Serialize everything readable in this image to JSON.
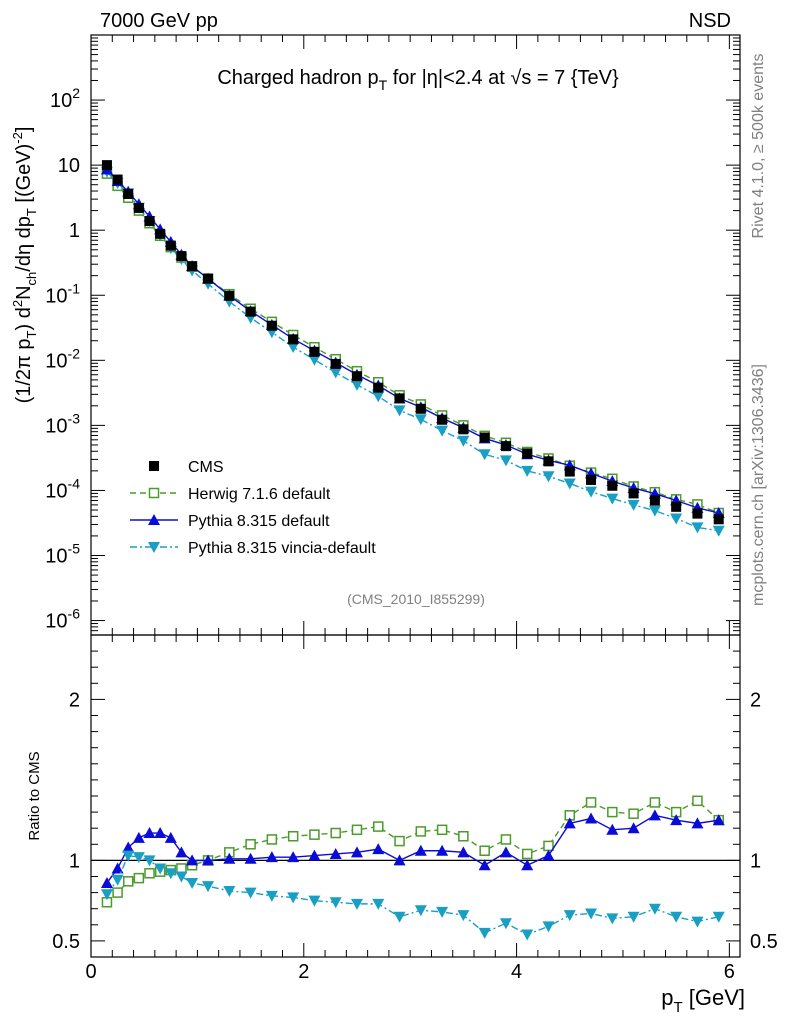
{
  "header": {
    "energy": "7000 GeV pp",
    "process": "NSD",
    "side_rivet": "Rivet 4.1.0, ≥ 500k events",
    "side_mcplots": "mcplots.cern.ch [arXiv:1306.3436]",
    "analysis": "(CMS_2010_I855299)"
  },
  "chart_data": [
    {
      "type": "scatter",
      "panel": "main",
      "title": "Charged hadron p_T for |η|<2.4 at √s = 7 {TeV}",
      "title_parts": {
        "a": "Charged hadron p",
        "sub": "T",
        "b": " for |η|<2.4 at √s = 7 {TeV}"
      },
      "ylabel": "(1/2π p_T) d²N_ch/dη dp_T [(GeV)^-2]",
      "ylabel_text": "(1/2π p",
      "ylabel_text2": ") d",
      "ylabel_text3": "N",
      "ylabel_text4": "/dη dp",
      "ylabel_text5": " [(GeV)",
      "ylabel_sub_t": "T",
      "ylabel_sub_ch": "ch",
      "ylabel_sup_2": "2",
      "ylabel_sup_m2": "-2",
      "ylabel_close": "]",
      "yscale": "log",
      "ylim": [
        6e-07,
        1000
      ],
      "xlim": [
        0,
        6.1
      ],
      "y_ticks": [
        {
          "value": 1e-06,
          "base": "10",
          "exp": "-6"
        },
        {
          "value": 1e-05,
          "base": "10",
          "exp": "-5"
        },
        {
          "value": 0.0001,
          "base": "10",
          "exp": "-4"
        },
        {
          "value": 0.001,
          "base": "10",
          "exp": "-3"
        },
        {
          "value": 0.01,
          "base": "10",
          "exp": "-2"
        },
        {
          "value": 0.1,
          "base": "10",
          "exp": "-1"
        },
        {
          "value": 1,
          "base": "1",
          "exp": ""
        },
        {
          "value": 10,
          "base": "10",
          "exp": ""
        },
        {
          "value": 100,
          "base": "10",
          "exp": "2"
        }
      ],
      "x": [
        0.15,
        0.25,
        0.35,
        0.45,
        0.55,
        0.65,
        0.75,
        0.85,
        0.95,
        1.1,
        1.3,
        1.5,
        1.7,
        1.9,
        2.1,
        2.3,
        2.5,
        2.7,
        2.9,
        3.1,
        3.3,
        3.5,
        3.7,
        3.9,
        4.1,
        4.3,
        4.5,
        4.7,
        4.9,
        5.1,
        5.3,
        5.5,
        5.7,
        5.9
      ],
      "series": [
        {
          "name": "CMS",
          "marker": "square",
          "color": "#000000",
          "values": [
            10.0,
            6.0,
            3.6,
            2.2,
            1.38,
            0.88,
            0.58,
            0.4,
            0.28,
            0.18,
            0.098,
            0.056,
            0.034,
            0.021,
            0.0135,
            0.0088,
            0.0057,
            0.0038,
            0.0026,
            0.0018,
            0.00122,
            0.00087,
            0.00065,
            0.00048,
            0.00037,
            0.00028,
            0.000195,
            0.000145,
            0.000118,
            9e-05,
            7e-05,
            5.6e-05,
            4.4e-05,
            3.6e-05
          ]
        },
        {
          "name": "Herwig 7.1.6 default",
          "marker": "open-square",
          "color": "#4b9a2a",
          "dash": "6,4",
          "values": [
            7.4,
            4.8,
            3.15,
            2.0,
            1.28,
            0.82,
            0.55,
            0.38,
            0.275,
            0.18,
            0.104,
            0.062,
            0.039,
            0.0245,
            0.0159,
            0.0104,
            0.0068,
            0.0046,
            0.0029,
            0.0021,
            0.00142,
            0.001,
            0.00069,
            0.00054,
            0.00039,
            0.00031,
            0.00024,
            0.000188,
            0.000151,
            0.000115,
            9.4e-05,
            7.3e-05,
            6.1e-05,
            4.5e-05
          ]
        },
        {
          "name": "Pythia 8.315 default",
          "marker": "triangle-up",
          "color": "#0b0bd9",
          "dash": "",
          "values": [
            8.6,
            5.7,
            3.9,
            2.5,
            1.62,
            1.03,
            0.66,
            0.42,
            0.28,
            0.18,
            0.099,
            0.057,
            0.035,
            0.0214,
            0.014,
            0.0092,
            0.006,
            0.0041,
            0.0026,
            0.0019,
            0.00129,
            0.00092,
            0.00063,
            0.0005,
            0.00036,
            0.00029,
            0.000243,
            0.000183,
            0.000139,
            0.000109,
            8.9e-05,
            7e-05,
            5.4e-05,
            4.5e-05
          ]
        },
        {
          "name": "Pythia 8.315 vincia-default",
          "marker": "triangle-down",
          "color": "#1a9fc4",
          "dash": "7,3,2,3",
          "values": [
            7.9,
            5.3,
            3.7,
            2.2,
            1.38,
            0.83,
            0.53,
            0.36,
            0.24,
            0.15,
            0.08,
            0.045,
            0.027,
            0.016,
            0.0102,
            0.0065,
            0.0042,
            0.0028,
            0.0017,
            0.00124,
            0.00083,
            0.00058,
            0.00036,
            0.00029,
            0.0002,
            0.000165,
            0.000128,
            9.6e-05,
            7.5e-05,
            6e-05,
            4.9e-05,
            3.7e-05,
            2.7e-05,
            2.4e-05
          ]
        }
      ],
      "legend": {
        "placement": "bottom-left"
      }
    },
    {
      "type": "scatter",
      "panel": "ratio",
      "ylabel": "Ratio to CMS",
      "xlabel": "p_T [GeV]",
      "xlabel_a": "p",
      "xlabel_sub": "T",
      "xlabel_b": " [GeV]",
      "ylim": [
        0.4,
        2.4
      ],
      "xlim": [
        0,
        6.1
      ],
      "y_ticks": [
        {
          "value": 0.5,
          "label": "0.5"
        },
        {
          "value": 1,
          "label": "1"
        },
        {
          "value": 2,
          "label": "2"
        }
      ],
      "x_ticks": [
        {
          "value": 0,
          "label": "0"
        },
        {
          "value": 2,
          "label": "2"
        },
        {
          "value": 4,
          "label": "4"
        },
        {
          "value": 6,
          "label": "6"
        }
      ],
      "x": [
        0.15,
        0.25,
        0.35,
        0.45,
        0.55,
        0.65,
        0.75,
        0.85,
        0.95,
        1.1,
        1.3,
        1.5,
        1.7,
        1.9,
        2.1,
        2.3,
        2.5,
        2.7,
        2.9,
        3.1,
        3.3,
        3.5,
        3.7,
        3.9,
        4.1,
        4.3,
        4.5,
        4.7,
        4.9,
        5.1,
        5.3,
        5.5,
        5.7,
        5.9
      ],
      "series": [
        {
          "name": "Herwig 7.1.6 default",
          "values": [
            0.74,
            0.8,
            0.87,
            0.89,
            0.92,
            0.93,
            0.94,
            0.95,
            0.97,
            1.0,
            1.05,
            1.1,
            1.13,
            1.15,
            1.16,
            1.17,
            1.19,
            1.21,
            1.12,
            1.18,
            1.19,
            1.15,
            1.06,
            1.13,
            1.04,
            1.09,
            1.28,
            1.36,
            1.3,
            1.29,
            1.36,
            1.3,
            1.37,
            1.25
          ]
        },
        {
          "name": "Pythia 8.315 default",
          "values": [
            0.86,
            0.95,
            1.08,
            1.14,
            1.17,
            1.17,
            1.14,
            1.05,
            1.0,
            1.0,
            1.01,
            1.01,
            1.02,
            1.02,
            1.03,
            1.04,
            1.05,
            1.07,
            1.0,
            1.06,
            1.06,
            1.05,
            0.97,
            1.05,
            0.97,
            1.03,
            1.23,
            1.26,
            1.19,
            1.2,
            1.28,
            1.25,
            1.23,
            1.25
          ]
        },
        {
          "name": "Pythia 8.315 vincia-default",
          "values": [
            0.79,
            0.88,
            1.03,
            1.02,
            1.0,
            0.95,
            0.92,
            0.9,
            0.86,
            0.84,
            0.81,
            0.8,
            0.78,
            0.77,
            0.75,
            0.74,
            0.73,
            0.73,
            0.65,
            0.69,
            0.68,
            0.66,
            0.55,
            0.61,
            0.54,
            0.59,
            0.66,
            0.67,
            0.64,
            0.65,
            0.7,
            0.65,
            0.62,
            0.65
          ]
        }
      ]
    }
  ]
}
